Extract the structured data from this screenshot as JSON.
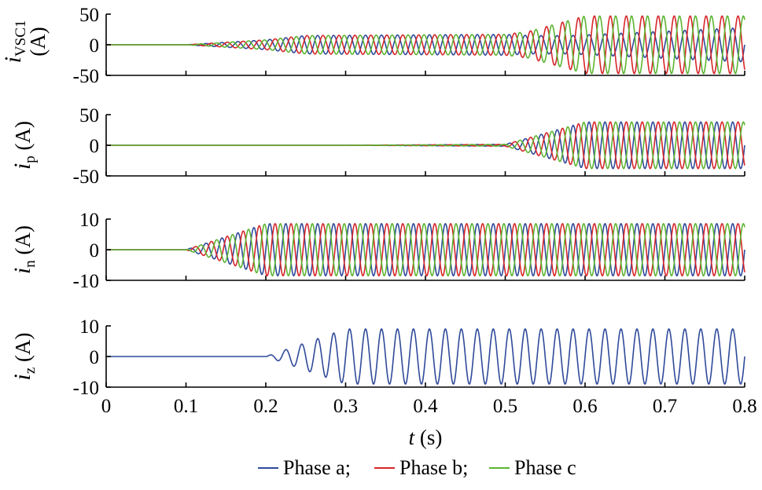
{
  "chart_data": {
    "type": "line",
    "x_range": [
      0,
      0.8
    ],
    "x_ticks": [
      "0",
      "0.1",
      "0.2",
      "0.3",
      "0.4",
      "0.5",
      "0.6",
      "0.7",
      "0.8"
    ],
    "x_tick_values": [
      0,
      0.1,
      0.2,
      0.3,
      0.4,
      0.5,
      0.6,
      0.7,
      0.8
    ],
    "xlabel_var": "t",
    "xlabel_unit": " (s)",
    "frequency_hz": 50,
    "legend_placement": "bottom-center",
    "legend": {
      "a": "Phase a;",
      "b": "Phase b;",
      "c": "Phase c"
    },
    "colors": {
      "a": "#2f4a9a",
      "b": "#d6262a",
      "c": "#5cb531"
    },
    "panels": [
      {
        "id": "ivsc1",
        "ylabel_var": "i",
        "ylabel_sub": "VSC1",
        "ylabel_unit": "(A)",
        "ylim": [
          -50,
          50
        ],
        "y_ticks": [
          "50",
          "0",
          "-50"
        ],
        "y_tick_values": [
          50,
          0,
          -50
        ],
        "series": [
          {
            "phase": "a",
            "envelope": [
              [
                0,
                0
              ],
              [
                0.1,
                0
              ],
              [
                0.2,
                8
              ],
              [
                0.25,
                15
              ],
              [
                0.5,
                17
              ],
              [
                0.53,
                15
              ],
              [
                0.58,
                15
              ],
              [
                0.8,
                28
              ]
            ]
          },
          {
            "phase": "b",
            "envelope": [
              [
                0,
                0
              ],
              [
                0.1,
                0
              ],
              [
                0.2,
                8
              ],
              [
                0.25,
                15
              ],
              [
                0.5,
                17
              ],
              [
                0.53,
                22
              ],
              [
                0.6,
                47
              ],
              [
                0.8,
                47
              ]
            ]
          },
          {
            "phase": "c",
            "envelope": [
              [
                0,
                0
              ],
              [
                0.1,
                0
              ],
              [
                0.2,
                8
              ],
              [
                0.25,
                15
              ],
              [
                0.5,
                17
              ],
              [
                0.53,
                22
              ],
              [
                0.6,
                47
              ],
              [
                0.8,
                47
              ]
            ]
          }
        ]
      },
      {
        "id": "ip",
        "ylabel_var": "i",
        "ylabel_sub": "p",
        "ylabel_unit": "(A)",
        "ylim": [
          -50,
          50
        ],
        "y_ticks": [
          "50",
          "0",
          "-50"
        ],
        "y_tick_values": [
          50,
          0,
          -50
        ],
        "series": [
          {
            "phase": "a",
            "envelope": [
              [
                0,
                0
              ],
              [
                0.3,
                0
              ],
              [
                0.5,
                1.5
              ],
              [
                0.6,
                38
              ],
              [
                0.8,
                38
              ]
            ]
          },
          {
            "phase": "b",
            "envelope": [
              [
                0,
                0
              ],
              [
                0.3,
                0
              ],
              [
                0.5,
                1.5
              ],
              [
                0.6,
                38
              ],
              [
                0.8,
                38
              ]
            ]
          },
          {
            "phase": "c",
            "envelope": [
              [
                0,
                0
              ],
              [
                0.3,
                0
              ],
              [
                0.5,
                1.5
              ],
              [
                0.6,
                38
              ],
              [
                0.8,
                38
              ]
            ]
          }
        ]
      },
      {
        "id": "in",
        "ylabel_var": "i",
        "ylabel_sub": "n",
        "ylabel_unit": "(A)",
        "ylim": [
          -10,
          10
        ],
        "y_ticks": [
          "10",
          "0",
          "-10"
        ],
        "y_tick_values": [
          10,
          0,
          -10
        ],
        "series": [
          {
            "phase": "a",
            "envelope": [
              [
                0,
                0
              ],
              [
                0.1,
                0
              ],
              [
                0.2,
                8.5
              ],
              [
                0.8,
                8.5
              ]
            ]
          },
          {
            "phase": "b",
            "envelope": [
              [
                0,
                0
              ],
              [
                0.1,
                0
              ],
              [
                0.2,
                8.5
              ],
              [
                0.8,
                8.5
              ]
            ]
          },
          {
            "phase": "c",
            "envelope": [
              [
                0,
                0
              ],
              [
                0.1,
                0
              ],
              [
                0.2,
                8.5
              ],
              [
                0.8,
                8.5
              ]
            ]
          }
        ]
      },
      {
        "id": "iz",
        "ylabel_var": "i",
        "ylabel_sub": "z",
        "ylabel_unit": "(A)",
        "ylim": [
          -10,
          10
        ],
        "y_ticks": [
          "10",
          "0",
          "-10"
        ],
        "y_tick_values": [
          10,
          0,
          -10
        ],
        "series": [
          {
            "phase": "a",
            "envelope": [
              [
                0,
                0
              ],
              [
                0.2,
                0
              ],
              [
                0.3,
                9
              ],
              [
                0.8,
                9
              ]
            ]
          }
        ]
      }
    ]
  }
}
